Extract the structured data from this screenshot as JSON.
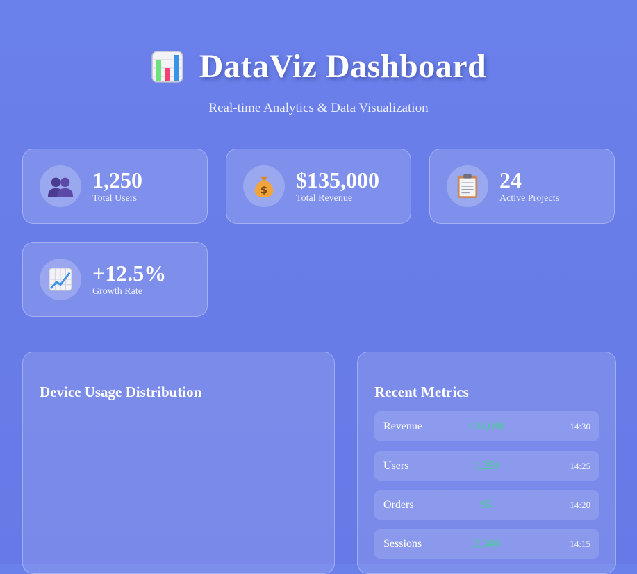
{
  "header": {
    "logo_icon": "bar-chart-icon",
    "title": "DataViz Dashboard",
    "subtitle": "Real-time Analytics & Data Visualization"
  },
  "stats": [
    {
      "icon": "users-icon",
      "value": "1,250",
      "label": "Total Users"
    },
    {
      "icon": "money-bag-icon",
      "value": "$135,000",
      "label": "Total Revenue"
    },
    {
      "icon": "clipboard-icon",
      "value": "24",
      "label": "Active Projects"
    },
    {
      "icon": "chart-up-icon",
      "value": "+12.5%",
      "label": "Growth Rate"
    }
  ],
  "device_panel": {
    "title": "Device Usage Distribution"
  },
  "metrics_panel": {
    "title": "Recent Metrics",
    "rows": [
      {
        "name": "Revenue",
        "value": "135,000",
        "time": "14:30"
      },
      {
        "name": "Users",
        "value": "1,250",
        "time": "14:25"
      },
      {
        "name": "Orders",
        "value": "95",
        "time": "14:20"
      },
      {
        "name": "Sessions",
        "value": "2,340",
        "time": "14:15"
      }
    ]
  },
  "colors": {
    "background": "#6a80ea",
    "metric_value": "#3fd58a"
  }
}
